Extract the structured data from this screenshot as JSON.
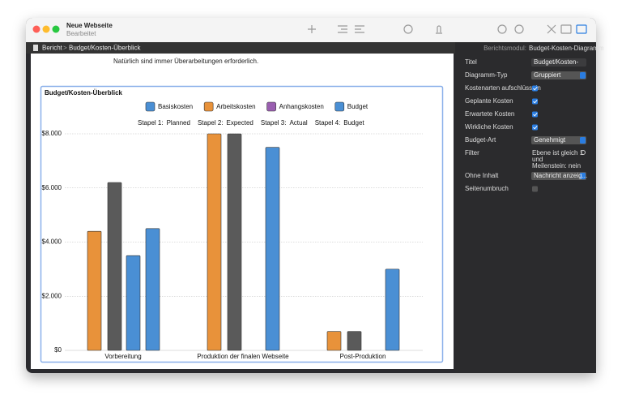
{
  "window": {
    "title": "Neue Webseite",
    "subtitle": "Bearbeitet"
  },
  "breadcrumb": [
    "Bericht",
    "Budget/Kosten-Überblick"
  ],
  "page_text": "Natürlich sind immer Überarbeitungen erforderlich.",
  "chart_data": {
    "type": "bar",
    "title": "Budget/Kosten-Überblick",
    "legend": [
      {
        "name": "Basiskosten",
        "color": "#4a8fd4"
      },
      {
        "name": "Arbeitskosten",
        "color": "#e8923a"
      },
      {
        "name": "Anhangskosten",
        "color": "#9a5fb0"
      },
      {
        "name": "Budget",
        "color": "#4a8fd4"
      }
    ],
    "categories": [
      "Vorbereitung",
      "Produktion der finalen Webseite",
      "Post-Produktion"
    ],
    "series": [
      {
        "stack": "Stapel 1:",
        "name": "Planned",
        "color": "#e8923a",
        "values": [
          4400,
          8000,
          700
        ]
      },
      {
        "stack": "Stapel 2:",
        "name": "Expected",
        "color": "#5a5a5a",
        "values": [
          6200,
          8000,
          700
        ]
      },
      {
        "stack": "Stapel 3:",
        "name": "Actual",
        "color": "#4a8fd4",
        "values": [
          3500,
          0,
          0
        ]
      },
      {
        "stack": "Stapel 4:",
        "name": "Budget",
        "color": "#4a8fd4",
        "values": [
          4500,
          7500,
          3000
        ]
      }
    ],
    "ylim": [
      0,
      8000
    ],
    "yticks": [
      {
        "value": 0,
        "label": "$0"
      },
      {
        "value": 2000,
        "label": "$2.000"
      },
      {
        "value": 4000,
        "label": "$4.000"
      },
      {
        "value": 6000,
        "label": "$6.000"
      },
      {
        "value": 8000,
        "label": "$8.000"
      }
    ],
    "grid": true
  },
  "inspector": {
    "header": "Berichtsmodul:",
    "module": "Budget-Kosten-Diagramm",
    "rows": [
      {
        "label": "Titel",
        "field": "Budget/Kosten-"
      },
      {
        "label": "Diagramm-Typ",
        "popup": "Gruppiert"
      },
      {
        "label": "Kostenarten aufschlüsseln",
        "checked": true
      },
      {
        "label": "Geplante Kosten",
        "checked": true
      },
      {
        "label": "Erwartete Kosten",
        "checked": true
      },
      {
        "label": "Wirkliche Kosten",
        "checked": true
      },
      {
        "label": "Budget-Art",
        "popup": "Genehmigt"
      },
      {
        "label": "Filter",
        "lines": [
          "Ebene ist gleich 1",
          "und",
          "Meilenstein: nein"
        ]
      },
      {
        "label": "Ohne Inhalt",
        "popup": "Nachricht anzeig..."
      },
      {
        "label": "Seitenumbruch",
        "checked": false
      }
    ]
  }
}
